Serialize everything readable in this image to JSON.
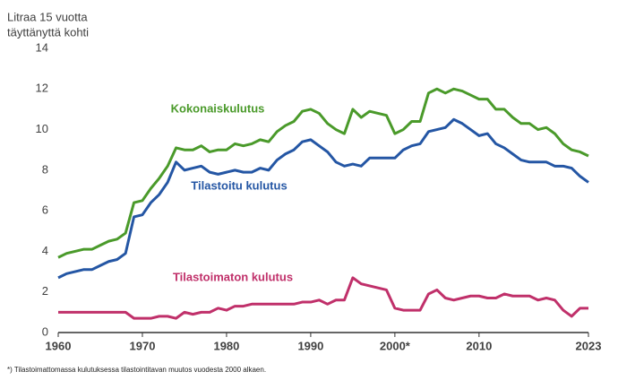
{
  "chart_data": {
    "type": "line",
    "y_label": [
      "Litraa 15 vuotta",
      "täyttänyttä  kohti"
    ],
    "footnote": "*) Tilastoimattomassa kulutuksessa tilastointitavan muutos vuodesta 2000 alkaen.",
    "x": [
      1960,
      1961,
      1962,
      1963,
      1964,
      1965,
      1966,
      1967,
      1968,
      1969,
      1970,
      1971,
      1972,
      1973,
      1974,
      1975,
      1976,
      1977,
      1978,
      1979,
      1980,
      1981,
      1982,
      1983,
      1984,
      1985,
      1986,
      1987,
      1988,
      1989,
      1990,
      1991,
      1992,
      1993,
      1994,
      1995,
      1996,
      1997,
      1998,
      1999,
      2000,
      2001,
      2002,
      2003,
      2004,
      2005,
      2006,
      2007,
      2008,
      2009,
      2010,
      2011,
      2012,
      2013,
      2014,
      2015,
      2016,
      2017,
      2018,
      2019,
      2020,
      2021,
      2022,
      2023
    ],
    "series": [
      {
        "name": "Kokonaiskulutus",
        "color": "#4a9a2a",
        "values": [
          3.7,
          3.9,
          4.0,
          4.1,
          4.1,
          4.3,
          4.5,
          4.6,
          4.9,
          6.4,
          6.5,
          7.1,
          7.6,
          8.2,
          9.1,
          9.0,
          9.0,
          9.2,
          8.9,
          9.0,
          9.0,
          9.3,
          9.2,
          9.3,
          9.5,
          9.4,
          9.9,
          10.2,
          10.4,
          10.9,
          11.0,
          10.8,
          10.3,
          10.0,
          9.8,
          11.0,
          10.6,
          10.9,
          10.8,
          10.7,
          9.8,
          10.0,
          10.4,
          10.4,
          11.8,
          12.0,
          11.8,
          12.0,
          11.9,
          11.7,
          11.5,
          11.5,
          11.0,
          11.0,
          10.6,
          10.3,
          10.3,
          10.0,
          10.1,
          9.8,
          9.3,
          9.0,
          8.9,
          8.7
        ]
      },
      {
        "name": "Tilastoitu kulutus",
        "color": "#2456a4",
        "values": [
          2.7,
          2.9,
          3.0,
          3.1,
          3.1,
          3.3,
          3.5,
          3.6,
          3.9,
          5.7,
          5.8,
          6.4,
          6.8,
          7.4,
          8.4,
          8.0,
          8.1,
          8.2,
          7.9,
          7.8,
          7.9,
          8.0,
          7.9,
          7.9,
          8.1,
          8.0,
          8.5,
          8.8,
          9.0,
          9.4,
          9.5,
          9.2,
          8.9,
          8.4,
          8.2,
          8.3,
          8.2,
          8.6,
          8.6,
          8.6,
          8.6,
          9.0,
          9.2,
          9.3,
          9.9,
          10.0,
          10.1,
          10.5,
          10.3,
          10.0,
          9.7,
          9.8,
          9.3,
          9.1,
          8.8,
          8.5,
          8.4,
          8.4,
          8.4,
          8.2,
          8.2,
          8.1,
          7.7,
          7.4
        ]
      },
      {
        "name": "Tilastoimaton kulutus",
        "color": "#c0306a",
        "values": [
          1.0,
          1.0,
          1.0,
          1.0,
          1.0,
          1.0,
          1.0,
          1.0,
          1.0,
          0.7,
          0.7,
          0.7,
          0.8,
          0.8,
          0.7,
          1.0,
          0.9,
          1.0,
          1.0,
          1.2,
          1.1,
          1.3,
          1.3,
          1.4,
          1.4,
          1.4,
          1.4,
          1.4,
          1.4,
          1.5,
          1.5,
          1.6,
          1.4,
          1.6,
          1.6,
          2.7,
          2.4,
          2.3,
          2.2,
          2.1,
          1.2,
          1.1,
          1.1,
          1.1,
          1.9,
          2.1,
          1.7,
          1.6,
          1.7,
          1.8,
          1.8,
          1.7,
          1.7,
          1.9,
          1.8,
          1.8,
          1.8,
          1.6,
          1.7,
          1.6,
          1.1,
          0.8,
          1.2,
          1.2
        ]
      }
    ],
    "xlim": [
      1960,
      2023
    ],
    "xticks": [
      1960,
      1970,
      1980,
      1990,
      {
        "value": 2000,
        "label": "2000*"
      },
      2010,
      2023
    ],
    "ylim": [
      0,
      14
    ],
    "yticks": [
      0,
      2,
      4,
      6,
      8,
      10,
      12,
      14
    ]
  }
}
